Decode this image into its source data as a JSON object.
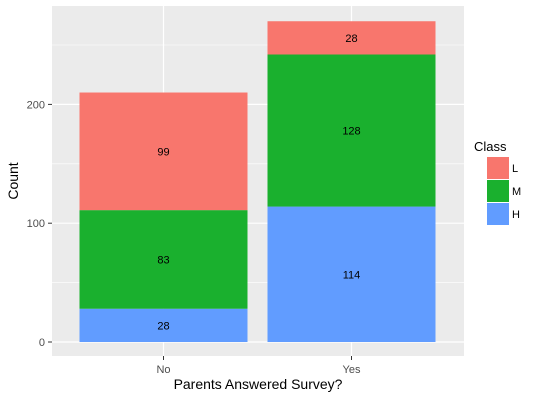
{
  "chart_data": {
    "type": "bar",
    "stacked": true,
    "categories": [
      "No",
      "Yes"
    ],
    "series": [
      {
        "name": "H",
        "values": [
          28,
          114
        ],
        "color": "#619CFF"
      },
      {
        "name": "M",
        "values": [
          83,
          128
        ],
        "color": "#1AB02E"
      },
      {
        "name": "L",
        "values": [
          99,
          28
        ],
        "color": "#F8766D"
      }
    ],
    "xlabel": "Parents Answered Survey?",
    "ylabel": "Count",
    "ylim": [
      0,
      285
    ],
    "yticks": [
      0,
      100,
      200
    ],
    "grid": true,
    "legend": {
      "title": "Class",
      "order": [
        "L",
        "M",
        "H"
      ],
      "placement": "right"
    },
    "panel_color": "#EBEBEB"
  }
}
